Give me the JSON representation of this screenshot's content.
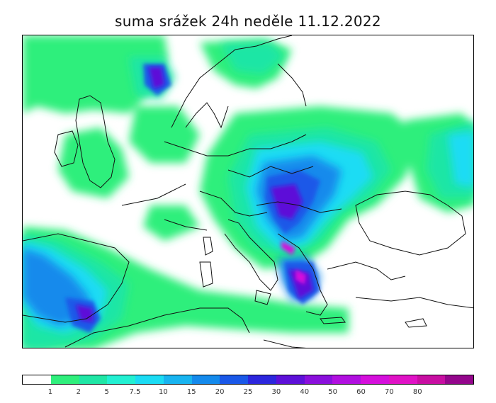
{
  "title": "suma srážek 24h  neděle 11.12.2022",
  "legend": {
    "colors": [
      "#ffffff",
      "#2fef7c",
      "#1fe6a5",
      "#22f0d2",
      "#1bdcf4",
      "#18b4f0",
      "#148aec",
      "#1a58e8",
      "#2c26dd",
      "#5d10d8",
      "#8a0fdc",
      "#b10fe0",
      "#d50fdc",
      "#e012c6",
      "#c80ea2",
      "#94068c"
    ],
    "labels": [
      "1",
      "2",
      "5",
      "7.5",
      "10",
      "15",
      "20",
      "25",
      "30",
      "40",
      "50",
      "60",
      "70",
      "80"
    ]
  }
}
